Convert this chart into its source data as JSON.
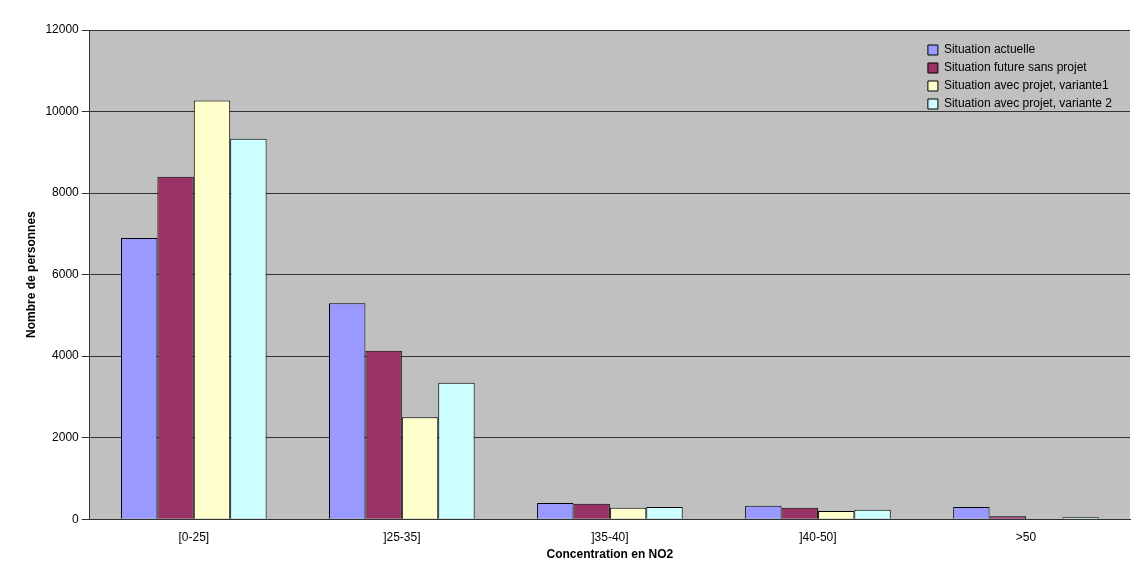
{
  "chart_data": {
    "type": "bar",
    "xlabel": "Concentration en NO2",
    "ylabel": "Nombre de personnes",
    "categories": [
      "[0-25]",
      "]25-35]",
      "]35-40]",
      "]40-50]",
      ">50"
    ],
    "series": [
      {
        "name": "Situation actuelle",
        "color": "#9999ff",
        "values": [
          6900,
          5300,
          400,
          330,
          300
        ]
      },
      {
        "name": "Situation future sans projet",
        "color": "#993366",
        "values": [
          8400,
          4130,
          380,
          280,
          70
        ]
      },
      {
        "name": "Situation avec projet, variante1",
        "color": "#ffffcc",
        "values": [
          10270,
          2500,
          280,
          200,
          0
        ]
      },
      {
        "name": "Situation avec projet, variante 2",
        "color": "#ccffff",
        "values": [
          9330,
          3350,
          300,
          230,
          50
        ]
      }
    ],
    "ylim": [
      0,
      12000
    ],
    "yticks": [
      0,
      2000,
      4000,
      6000,
      8000,
      10000,
      12000
    ],
    "grid": "y",
    "legend": "top right"
  }
}
